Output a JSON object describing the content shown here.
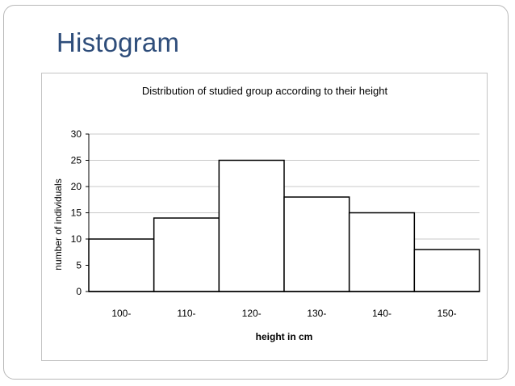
{
  "slide": {
    "title": "Histogram"
  },
  "chart_data": {
    "type": "bar",
    "title": "Distribution of studied group according to their height",
    "xlabel": "height in cm",
    "ylabel": "number of individuals",
    "categories": [
      "100-",
      "110-",
      "120-",
      "130-",
      "140-",
      "150-"
    ],
    "values": [
      10,
      14,
      25,
      18,
      15,
      8
    ],
    "ylim": [
      0,
      30
    ],
    "yticks": [
      0,
      5,
      10,
      15,
      20,
      25,
      30
    ],
    "grid": true,
    "legend": "none",
    "bar_fill": "#ffffff",
    "bar_stroke": "#000000",
    "grid_color": "#c8c8c8"
  }
}
